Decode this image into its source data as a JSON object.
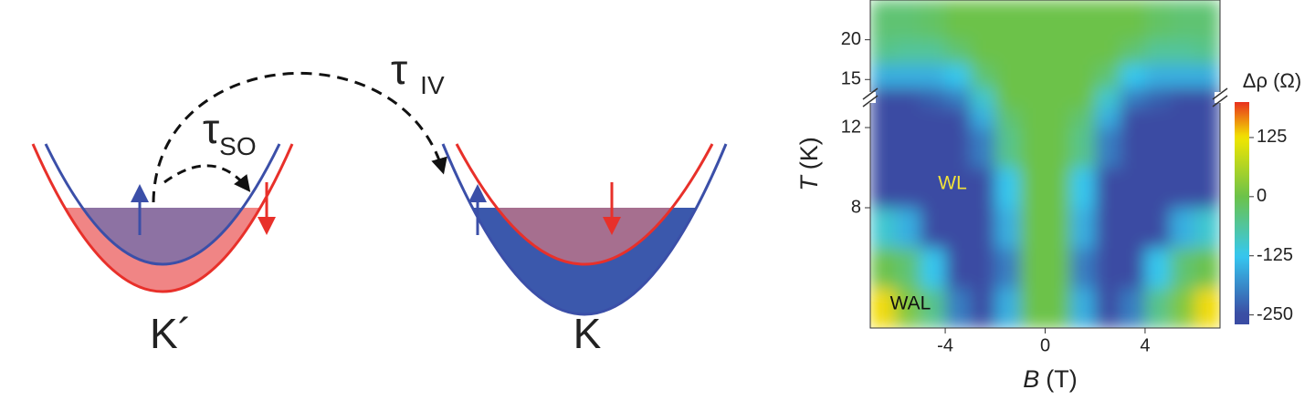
{
  "diagram": {
    "valley_left": "K´",
    "valley_right": "K",
    "tau_iv": {
      "symbol": "τ",
      "subscript": "IV"
    },
    "tau_so": {
      "symbol": "τ",
      "subscript": "SO"
    }
  },
  "chart_data": {
    "type": "heatmap",
    "xlabel": {
      "variable": "B",
      "unit": "(T)"
    },
    "ylabel": {
      "variable": "T",
      "unit": "(K)"
    },
    "colorbar_label": "Δρ (Ω)",
    "annotations": [
      {
        "text": "WL",
        "color": "#f2e23a"
      },
      {
        "text": "WAL",
        "color": "#111111"
      }
    ],
    "x_bins": [
      -7,
      -6,
      -5,
      -4,
      -3,
      -2,
      -1,
      0,
      1,
      2,
      3,
      4,
      5,
      6,
      7
    ],
    "y_bins": [
      2,
      4,
      6,
      8,
      10,
      12,
      13,
      14,
      17,
      20,
      25
    ],
    "z": [
      [
        130,
        20,
        -50,
        -200,
        -250,
        -150,
        0,
        0,
        -150,
        -250,
        -200,
        -50,
        20,
        130
      ],
      [
        0,
        -30,
        -125,
        -250,
        -250,
        -200,
        0,
        0,
        -200,
        -250,
        -250,
        -125,
        -30,
        0
      ],
      [
        -100,
        -150,
        -250,
        -250,
        -250,
        -150,
        0,
        0,
        -150,
        -250,
        -250,
        -250,
        -150,
        -100
      ],
      [
        -250,
        -250,
        -250,
        -250,
        -250,
        -125,
        0,
        0,
        -125,
        -250,
        -250,
        -250,
        -250,
        -250
      ],
      [
        -250,
        -250,
        -250,
        -250,
        -200,
        -50,
        0,
        0,
        -50,
        -200,
        -250,
        -250,
        -250,
        -250
      ],
      [
        -250,
        -250,
        -250,
        -250,
        -150,
        -30,
        0,
        0,
        -30,
        -150,
        -250,
        -250,
        -250,
        -250
      ],
      [
        -250,
        -250,
        -230,
        -200,
        -100,
        0,
        0,
        0,
        0,
        -100,
        -200,
        -230,
        -250,
        -250
      ],
      [
        -150,
        -150,
        -150,
        -125,
        -30,
        0,
        0,
        0,
        0,
        -30,
        -125,
        -150,
        -150,
        -150
      ],
      [
        -50,
        -60,
        -60,
        -30,
        0,
        0,
        0,
        0,
        0,
        0,
        -30,
        -60,
        -60,
        -50
      ],
      [
        -30,
        -30,
        -20,
        0,
        0,
        0,
        0,
        0,
        0,
        0,
        0,
        -20,
        -30,
        -30
      ]
    ],
    "xlim": [
      -7,
      7
    ],
    "xticks": [
      -4,
      0,
      4
    ],
    "ylim": [
      2,
      25
    ],
    "y_break": [
      13,
      14
    ],
    "yticks": [
      8,
      12,
      15,
      20
    ],
    "clim": [
      -270,
      200
    ],
    "cticks": [
      -250,
      -125,
      0,
      125
    ],
    "colorscale": [
      [
        -250,
        "#3a4ca3"
      ],
      [
        -125,
        "#36c8f0"
      ],
      [
        0,
        "#6cc24a"
      ],
      [
        125,
        "#f2e600"
      ],
      [
        200,
        "#e8301e"
      ]
    ]
  }
}
